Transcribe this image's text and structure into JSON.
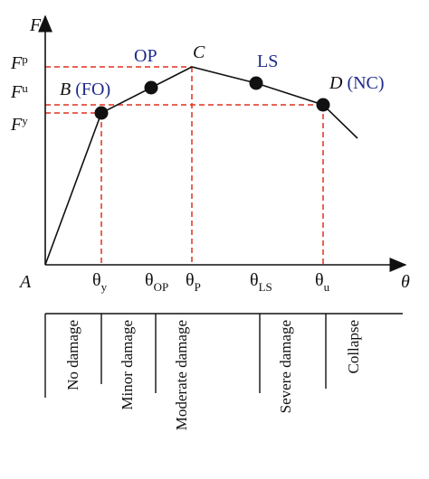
{
  "axes": {
    "y_label": "F",
    "x_label": "θ",
    "origin": "A"
  },
  "force_levels": [
    {
      "symbol": "F",
      "sub": "p"
    },
    {
      "symbol": "F",
      "sub": "u"
    },
    {
      "symbol": "F",
      "sub": "y"
    }
  ],
  "drift_levels": [
    {
      "symbol": "θ",
      "sub": "y"
    },
    {
      "symbol": "θ",
      "sub": "OP"
    },
    {
      "symbol": "θ",
      "sub": "P"
    },
    {
      "symbol": "θ",
      "sub": "LS"
    },
    {
      "symbol": "θ",
      "sub": "u"
    }
  ],
  "points": [
    {
      "letter": "B",
      "level": "(FO)"
    },
    {
      "level": "OP"
    },
    {
      "letter": "C"
    },
    {
      "level": "LS"
    },
    {
      "letter": "D",
      "level": "(NC)"
    }
  ],
  "damage_states": [
    "No damage",
    "Minor damage",
    "Moderate damage",
    "Severe damage",
    "Collapse"
  ]
}
